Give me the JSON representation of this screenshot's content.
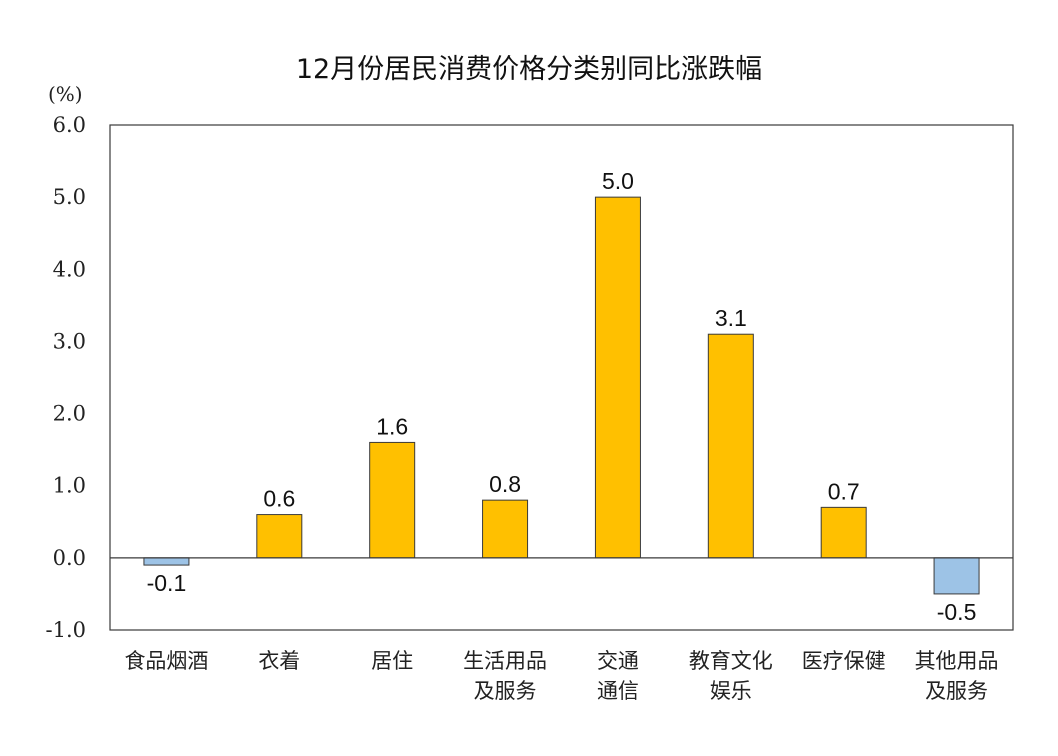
{
  "chart_data": {
    "type": "bar",
    "title": "12月份居民消费价格分类别同比涨跌幅",
    "unit_label": "(%)",
    "categories": [
      [
        "食品烟酒"
      ],
      [
        "衣着"
      ],
      [
        "居住"
      ],
      [
        "生活用品",
        "及服务"
      ],
      [
        "交通",
        "通信"
      ],
      [
        "教育文化",
        "娱乐"
      ],
      [
        "医疗保健"
      ],
      [
        "其他用品",
        "及服务"
      ]
    ],
    "values": [
      -0.1,
      0.6,
      1.6,
      0.8,
      5.0,
      3.1,
      0.7,
      -0.5
    ],
    "data_labels": [
      "-0.1",
      "0.6",
      "1.6",
      "0.8",
      "5.0",
      "3.1",
      "0.7",
      "-0.5"
    ],
    "y_ticks": [
      "6.0",
      "5.0",
      "4.0",
      "3.0",
      "2.0",
      "1.0",
      "0.0",
      "-1.0"
    ],
    "y_tick_values": [
      6,
      5,
      4,
      3,
      2,
      1,
      0,
      -1
    ],
    "ylim": [
      -1.0,
      6.0
    ],
    "grid": false,
    "colors": {
      "positive": "#FFC000",
      "positive_edge": "#3a3a3a",
      "negative": "#9DC3E6",
      "negative_edge": "#3a3a3a",
      "axis": "#3a3a3a"
    }
  }
}
